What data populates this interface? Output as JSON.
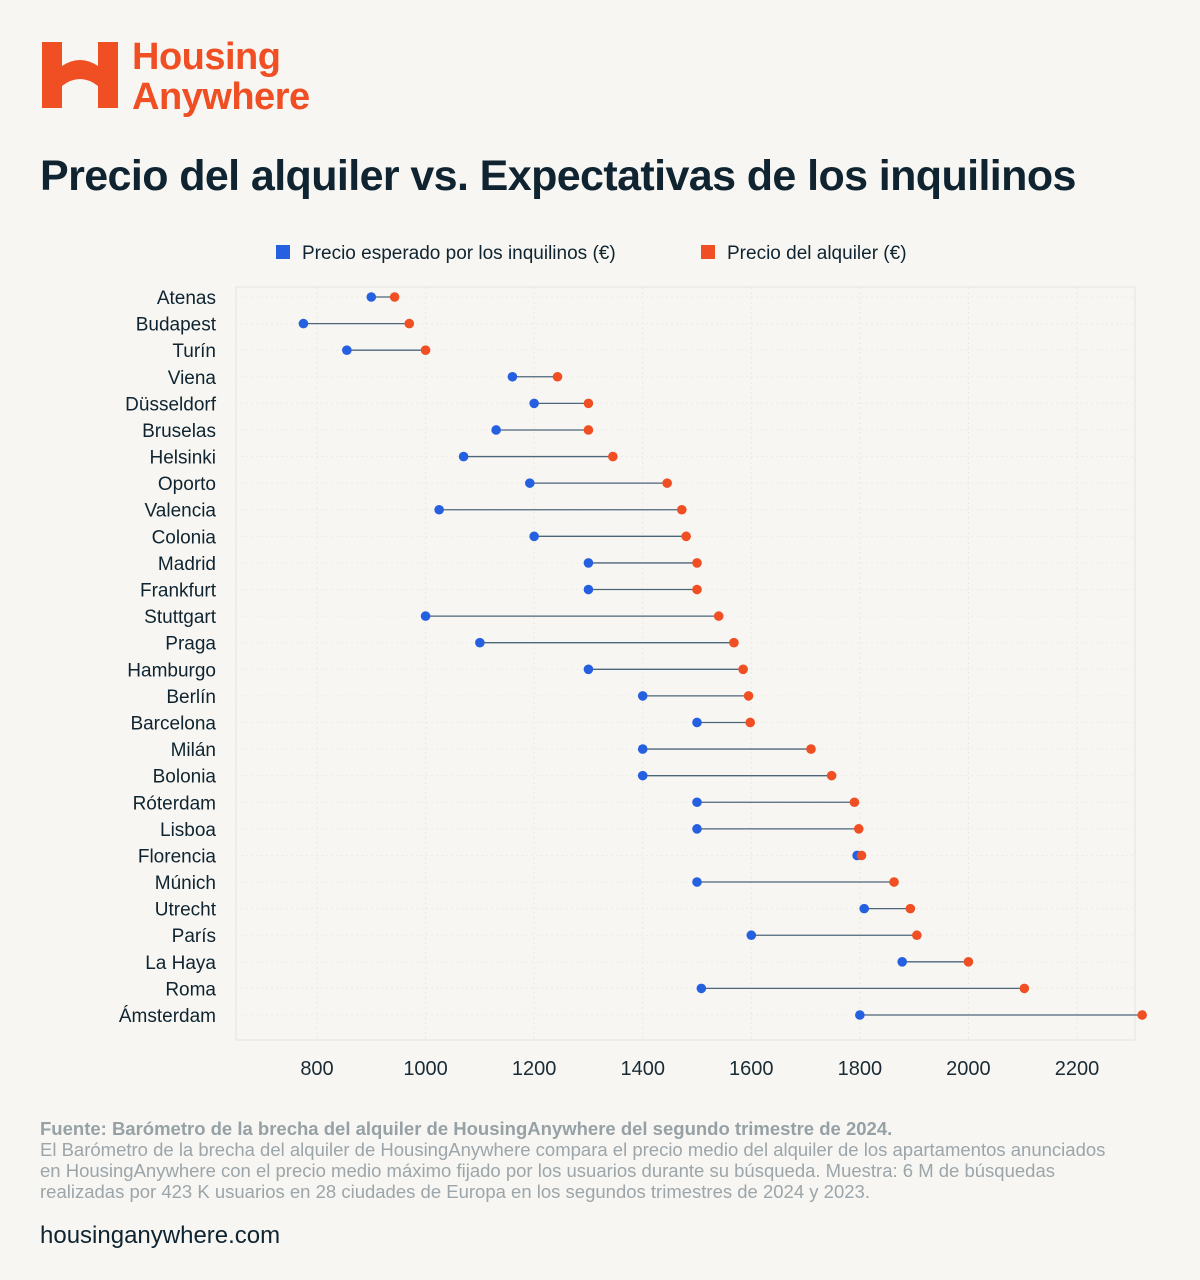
{
  "brand": {
    "line1": "Housing",
    "line2": "Anywhere",
    "color": "#f04e23"
  },
  "title": "Precio del alquiler vs. Expectativas de los inquilinos",
  "chart_data": {
    "type": "dumbbell",
    "orientation": "horizontal",
    "legend": [
      {
        "label": "Precio esperado por los inquilinos (€)",
        "color": "#2560e0"
      },
      {
        "label": "Precio del alquiler (€)",
        "color": "#f04e23"
      }
    ],
    "legend_position": "top-center",
    "xlim": [
      660,
      2320
    ],
    "xticks": [
      800,
      1000,
      1200,
      1400,
      1600,
      1800,
      2000,
      2200
    ],
    "grid": true,
    "series_names": [
      "expected",
      "rent"
    ],
    "cities": [
      {
        "name": "Atenas",
        "expected": 900,
        "rent": 943
      },
      {
        "name": "Budapest",
        "expected": 775,
        "rent": 970
      },
      {
        "name": "Turín",
        "expected": 855,
        "rent": 1000
      },
      {
        "name": "Viena",
        "expected": 1160,
        "rent": 1243
      },
      {
        "name": "Düsseldorf",
        "expected": 1200,
        "rent": 1300
      },
      {
        "name": "Bruselas",
        "expected": 1130,
        "rent": 1300
      },
      {
        "name": "Helsinki",
        "expected": 1070,
        "rent": 1345
      },
      {
        "name": "Oporto",
        "expected": 1192,
        "rent": 1445
      },
      {
        "name": "Valencia",
        "expected": 1025,
        "rent": 1472
      },
      {
        "name": "Colonia",
        "expected": 1200,
        "rent": 1480
      },
      {
        "name": "Madrid",
        "expected": 1300,
        "rent": 1500
      },
      {
        "name": "Frankfurt",
        "expected": 1300,
        "rent": 1500
      },
      {
        "name": "Stuttgart",
        "expected": 1000,
        "rent": 1540
      },
      {
        "name": "Praga",
        "expected": 1100,
        "rent": 1568
      },
      {
        "name": "Hamburgo",
        "expected": 1300,
        "rent": 1585
      },
      {
        "name": "Berlín",
        "expected": 1400,
        "rent": 1595
      },
      {
        "name": "Barcelona",
        "expected": 1500,
        "rent": 1598
      },
      {
        "name": "Milán",
        "expected": 1400,
        "rent": 1710
      },
      {
        "name": "Bolonia",
        "expected": 1400,
        "rent": 1748
      },
      {
        "name": "Róterdam",
        "expected": 1500,
        "rent": 1790
      },
      {
        "name": "Lisboa",
        "expected": 1500,
        "rent": 1798
      },
      {
        "name": "Florencia",
        "expected": 1795,
        "rent": 1803
      },
      {
        "name": "Múnich",
        "expected": 1500,
        "rent": 1863
      },
      {
        "name": "Utrecht",
        "expected": 1808,
        "rent": 1893
      },
      {
        "name": "París",
        "expected": 1600,
        "rent": 1905
      },
      {
        "name": "La Haya",
        "expected": 1878,
        "rent": 2000
      },
      {
        "name": "Roma",
        "expected": 1508,
        "rent": 2103
      },
      {
        "name": "Ámsterdam",
        "expected": 1800,
        "rent": 2320
      }
    ]
  },
  "footer": {
    "source": "Fuente: Barómetro de la brecha del alquiler de HousingAnywhere del segundo trimestre de 2024.",
    "description": "El Barómetro de la brecha del alquiler de HousingAnywhere compara el precio medio del alquiler de los apartamentos anunciados en HousingAnywhere con el precio medio máximo fijado por los usuarios durante su búsqueda. Muestra: 6 M de búsquedas realizadas por 423 K usuarios en 28 ciudades de Europa en los segundos trimestres de 2024 y 2023.",
    "website": "housinganywhere.com"
  }
}
